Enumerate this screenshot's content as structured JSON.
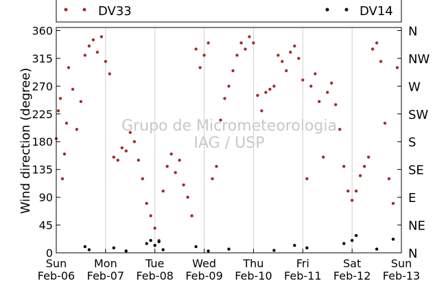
{
  "chart_data": {
    "type": "scatter",
    "title": "",
    "xlabel": "",
    "ylabel": "Wind direction (degree)",
    "ylim": [
      0,
      365
    ],
    "xlim": [
      "2011-02-06",
      "2011-02-13"
    ],
    "x_ticks": [
      {
        "weekday": "Sun",
        "date": "Feb-06"
      },
      {
        "weekday": "Mon",
        "date": "Feb-07"
      },
      {
        "weekday": "Tue",
        "date": "Feb-08"
      },
      {
        "weekday": "Wed",
        "date": "Feb-09"
      },
      {
        "weekday": "Thu",
        "date": "Feb-10"
      },
      {
        "weekday": "Fri",
        "date": "Feb-11"
      },
      {
        "weekday": "Sat",
        "date": "Feb-12"
      },
      {
        "weekday": "Sun",
        "date": "Feb-13"
      }
    ],
    "y_ticks": [
      "0",
      "45",
      "90",
      "135",
      "180",
      "225",
      "270",
      "315",
      "360"
    ],
    "y_right_ticks": [
      "N",
      "NE",
      "E",
      "SE",
      "S",
      "SW",
      "W",
      "NW",
      "N"
    ],
    "grid": "vertical lines at each day",
    "legend_position": "top",
    "watermark": [
      "Grupo de Micrometeorologia",
      "IAG / USP"
    ],
    "series": [
      {
        "name": "DV33",
        "color": "#a52a2a",
        "points": [
          [
            "02-06 00:00",
            185
          ],
          [
            "02-06 01:00",
            230
          ],
          [
            "02-06 02:00",
            250
          ],
          [
            "02-06 03:00",
            120
          ],
          [
            "02-06 04:00",
            160
          ],
          [
            "02-06 05:00",
            210
          ],
          [
            "02-06 06:00",
            300
          ],
          [
            "02-06 08:00",
            265
          ],
          [
            "02-06 10:00",
            200
          ],
          [
            "02-06 12:00",
            245
          ],
          [
            "02-06 14:00",
            320
          ],
          [
            "02-06 16:00",
            335
          ],
          [
            "02-06 18:00",
            345
          ],
          [
            "02-06 20:00",
            325
          ],
          [
            "02-06 22:00",
            350
          ],
          [
            "02-07 00:00",
            310
          ],
          [
            "02-07 02:00",
            290
          ],
          [
            "02-07 04:00",
            155
          ],
          [
            "02-07 06:00",
            150
          ],
          [
            "02-07 08:00",
            170
          ],
          [
            "02-07 10:00",
            165
          ],
          [
            "02-07 12:00",
            195
          ],
          [
            "02-07 14:00",
            180
          ],
          [
            "02-07 16:00",
            150
          ],
          [
            "02-07 18:00",
            120
          ],
          [
            "02-07 20:00",
            80
          ],
          [
            "02-07 22:00",
            60
          ],
          [
            "02-08 00:00",
            40
          ],
          [
            "02-08 02:00",
            20
          ],
          [
            "02-08 04:00",
            100
          ],
          [
            "02-08 06:00",
            140
          ],
          [
            "02-08 08:00",
            160
          ],
          [
            "02-08 10:00",
            130
          ],
          [
            "02-08 12:00",
            150
          ],
          [
            "02-08 14:00",
            110
          ],
          [
            "02-08 16:00",
            90
          ],
          [
            "02-08 18:00",
            60
          ],
          [
            "02-08 20:00",
            330
          ],
          [
            "02-08 22:00",
            300
          ],
          [
            "02-09 00:00",
            320
          ],
          [
            "02-09 02:00",
            340
          ],
          [
            "02-09 04:00",
            120
          ],
          [
            "02-09 06:00",
            140
          ],
          [
            "02-09 08:00",
            215
          ],
          [
            "02-09 10:00",
            250
          ],
          [
            "02-09 12:00",
            270
          ],
          [
            "02-09 14:00",
            295
          ],
          [
            "02-09 16:00",
            320
          ],
          [
            "02-09 18:00",
            340
          ],
          [
            "02-09 20:00",
            330
          ],
          [
            "02-09 22:00",
            350
          ],
          [
            "02-10 00:00",
            340
          ],
          [
            "02-10 02:00",
            255
          ],
          [
            "02-10 04:00",
            230
          ],
          [
            "02-10 06:00",
            260
          ],
          [
            "02-10 08:00",
            265
          ],
          [
            "02-10 10:00",
            270
          ],
          [
            "02-10 12:00",
            320
          ],
          [
            "02-10 14:00",
            310
          ],
          [
            "02-10 16:00",
            295
          ],
          [
            "02-10 18:00",
            325
          ],
          [
            "02-10 20:00",
            335
          ],
          [
            "02-10 22:00",
            315
          ],
          [
            "02-11 00:00",
            280
          ],
          [
            "02-11 02:00",
            120
          ],
          [
            "02-11 04:00",
            270
          ],
          [
            "02-11 06:00",
            290
          ],
          [
            "02-11 08:00",
            245
          ],
          [
            "02-11 10:00",
            155
          ],
          [
            "02-11 12:00",
            260
          ],
          [
            "02-11 14:00",
            275
          ],
          [
            "02-11 16:00",
            240
          ],
          [
            "02-11 18:00",
            200
          ],
          [
            "02-11 20:00",
            140
          ],
          [
            "02-11 22:00",
            100
          ],
          [
            "02-12 00:00",
            85
          ],
          [
            "02-12 02:00",
            100
          ],
          [
            "02-12 04:00",
            125
          ],
          [
            "02-12 06:00",
            140
          ],
          [
            "02-12 08:00",
            155
          ],
          [
            "02-12 10:00",
            330
          ],
          [
            "02-12 12:00",
            340
          ],
          [
            "02-12 14:00",
            310
          ],
          [
            "02-12 16:00",
            210
          ],
          [
            "02-12 18:00",
            120
          ],
          [
            "02-12 20:00",
            80
          ],
          [
            "02-12 22:00",
            300
          ]
        ]
      },
      {
        "name": "DV14",
        "color": "#000000",
        "points": [
          [
            "02-06 14:00",
            10
          ],
          [
            "02-06 16:00",
            5
          ],
          [
            "02-07 04:00",
            8
          ],
          [
            "02-07 10:00",
            3
          ],
          [
            "02-07 20:00",
            15
          ],
          [
            "02-07 22:00",
            20
          ],
          [
            "02-08 00:00",
            12
          ],
          [
            "02-08 02:00",
            18
          ],
          [
            "02-08 04:00",
            5
          ],
          [
            "02-08 20:00",
            10
          ],
          [
            "02-09 02:00",
            3
          ],
          [
            "02-09 12:00",
            6
          ],
          [
            "02-10 10:00",
            4
          ],
          [
            "02-10 20:00",
            12
          ],
          [
            "02-11 02:00",
            8
          ],
          [
            "02-11 20:00",
            15
          ],
          [
            "02-12 00:00",
            20
          ],
          [
            "02-12 02:00",
            28
          ],
          [
            "02-12 12:00",
            6
          ],
          [
            "02-12 20:00",
            22
          ]
        ]
      }
    ]
  }
}
